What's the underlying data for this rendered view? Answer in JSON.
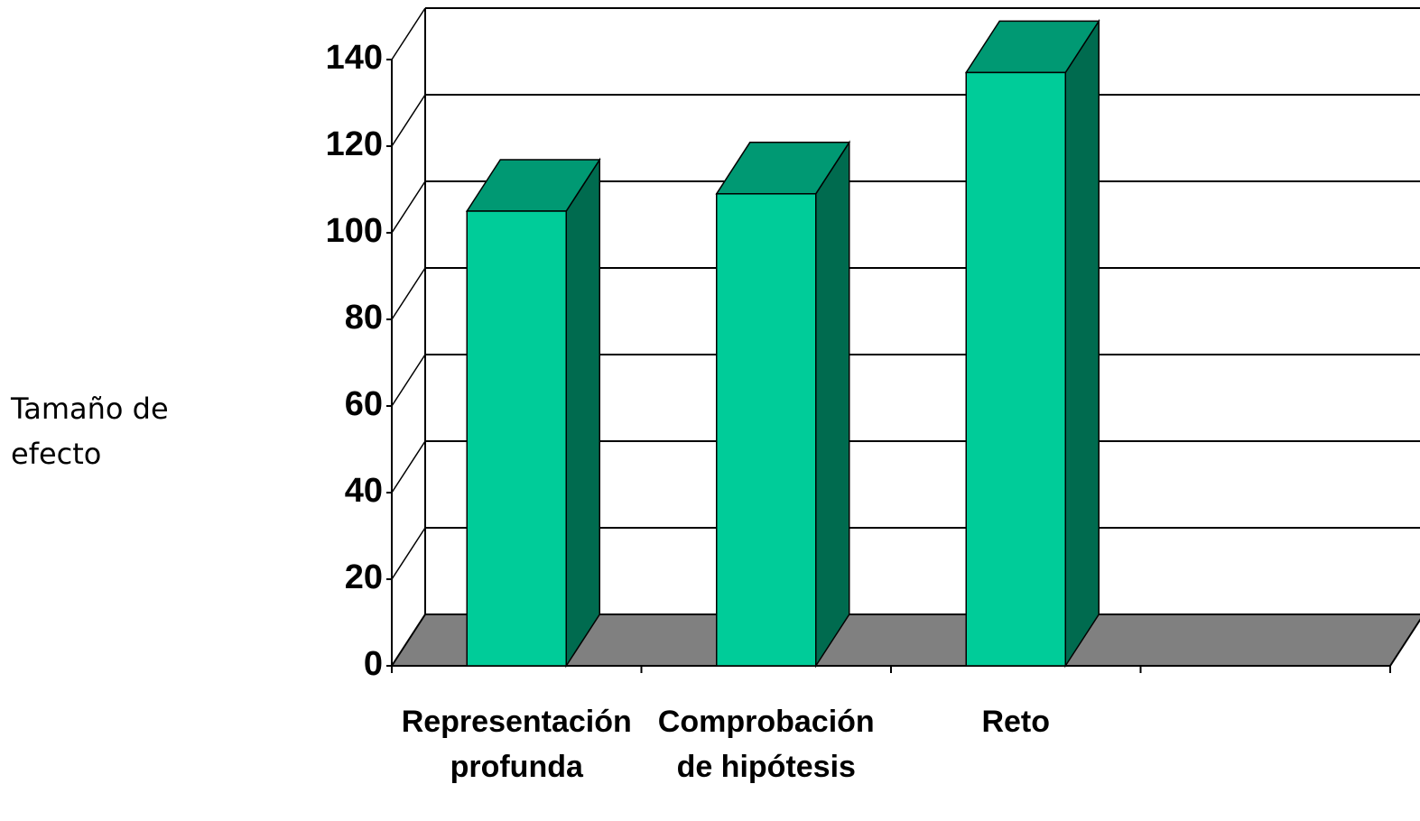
{
  "chart_data": {
    "type": "bar3d",
    "y_label": "Tamaño de efecto",
    "categories": [
      "Representación profunda",
      "Comprobación de hipótesis",
      "Reto",
      null
    ],
    "values": [
      105,
      109,
      137,
      null
    ],
    "color": "#00cc99",
    "top_color": "#009973",
    "side_color": "#006b4f",
    "floor_color": "#808080",
    "ylim": [
      0,
      140
    ],
    "yticks": [
      0,
      20,
      40,
      60,
      80,
      100,
      120,
      140
    ],
    "grid": true
  }
}
